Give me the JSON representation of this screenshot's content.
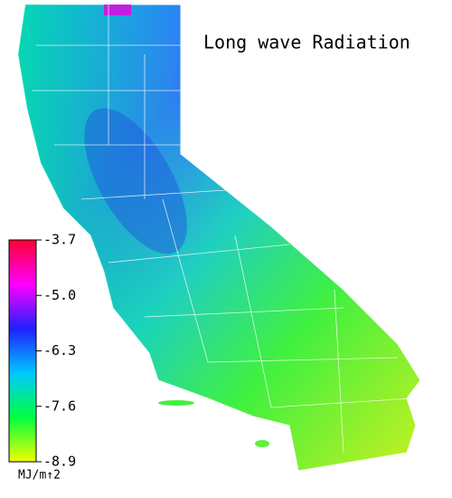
{
  "map": {
    "title": "Long wave Radiation",
    "colorbar": {
      "range": [
        -8.9,
        -3.7
      ],
      "ticks": [
        -3.7,
        {
          "value": -5,
          "label": "-5.0"
        },
        -6.3,
        -7.6,
        -8.9
      ],
      "colors": [
        "#ff0033",
        "#ff00ff",
        "#2020ff",
        "#00c8ff",
        "#00ff40",
        "#f0ff00"
      ],
      "unit": "MJ/m↑2"
    }
  }
}
